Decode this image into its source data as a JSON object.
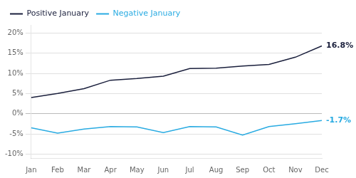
{
  "chart_data": {
    "type": "line",
    "categories": [
      "Jan",
      "Feb",
      "Mar",
      "Apr",
      "May",
      "Jun",
      "Jul",
      "Aug",
      "Sep",
      "Oct",
      "Nov",
      "Dec"
    ],
    "series": [
      {
        "name": "Positive January",
        "color": "#1a1f3c",
        "values": [
          4.0,
          5.0,
          6.2,
          8.3,
          8.7,
          9.3,
          11.2,
          11.3,
          11.8,
          12.2,
          14.0,
          16.8
        ]
      },
      {
        "name": "Negative January",
        "color": "#29abe2",
        "values": [
          -3.5,
          -4.8,
          -3.8,
          -3.2,
          -3.3,
          -4.7,
          -3.2,
          -3.3,
          -5.3,
          -3.2,
          -2.5,
          -1.7
        ]
      }
    ],
    "annotations": [
      {
        "text": "16.8%",
        "x": "Dec",
        "y": 16.8,
        "color": "#1a1f3c"
      },
      {
        "text": "-1.7%",
        "x": "Dec",
        "y": -1.7,
        "color": "#29abe2"
      }
    ],
    "ylim": [
      -11,
      22
    ],
    "yticks": [
      {
        "value": -10,
        "label": "-10%"
      },
      {
        "value": -5,
        "label": "-5%"
      },
      {
        "value": 0,
        "label": "0%"
      },
      {
        "value": 5,
        "label": "5%"
      },
      {
        "value": 10,
        "label": "10%"
      },
      {
        "value": 15,
        "label": "15%"
      },
      {
        "value": 20,
        "label": "20%"
      }
    ],
    "grid": true,
    "legend": "upper left"
  }
}
